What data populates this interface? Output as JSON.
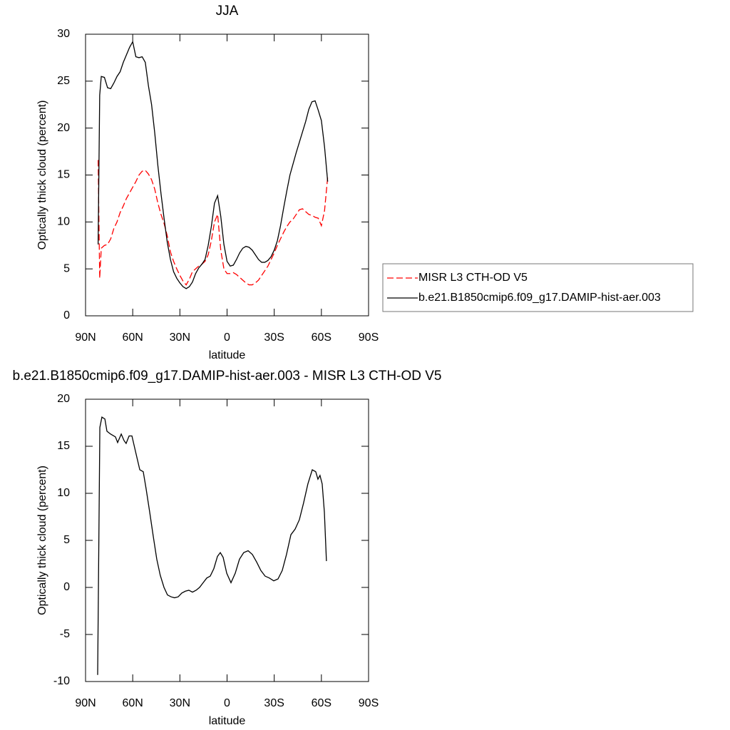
{
  "chart_data": [
    {
      "type": "line",
      "title": "JJA",
      "xlabel": "latitude",
      "ylabel": "Optically thick cloud (percent)",
      "x": [
        82,
        81,
        80,
        78,
        76,
        74,
        72,
        70,
        68,
        66,
        64,
        62,
        60,
        58,
        56,
        54,
        52,
        50,
        48,
        46,
        44,
        42,
        40,
        38,
        36,
        34,
        32,
        30,
        28,
        26,
        24,
        22,
        20,
        18,
        16,
        14,
        12,
        10,
        8,
        6,
        4,
        2,
        0,
        -2,
        -4,
        -6,
        -8,
        -10,
        -12,
        -14,
        -16,
        -18,
        -20,
        -22,
        -24,
        -26,
        -28,
        -30,
        -32,
        -34,
        -36,
        -38,
        -40,
        -42,
        -44,
        -46,
        -48,
        -50,
        -52,
        -54,
        -56,
        -58,
        -60,
        -62,
        -64
      ],
      "xlim": [
        90,
        -90
      ],
      "xticks": [
        {
          "value": 90,
          "label": "90N"
        },
        {
          "value": 60,
          "label": "60N"
        },
        {
          "value": 30,
          "label": "30N"
        },
        0,
        {
          "value": -30,
          "label": "30S"
        },
        {
          "value": -60,
          "label": "60S"
        },
        {
          "value": -90,
          "label": "90S"
        }
      ],
      "ylim": [
        0,
        30
      ],
      "yticks": [
        0,
        5,
        10,
        15,
        20,
        25,
        30
      ],
      "legend": "right",
      "series": [
        {
          "name": "MISR L3 CTH-OD V5",
          "color": "#ff0000",
          "linestyle": "dashed",
          "values": [
            16.6,
            4.0,
            7.2,
            7.5,
            7.6,
            8.2,
            9.3,
            10.0,
            11.0,
            11.7,
            12.5,
            13.1,
            13.7,
            14.3,
            15.0,
            15.4,
            15.5,
            15.1,
            14.5,
            13.5,
            12.0,
            10.8,
            9.8,
            8.5,
            6.8,
            5.8,
            5.0,
            4.3,
            3.7,
            3.3,
            3.9,
            4.7,
            5.0,
            5.3,
            5.5,
            5.8,
            6.5,
            8.0,
            10.0,
            10.8,
            7.0,
            5.0,
            4.5,
            4.5,
            4.6,
            4.4,
            4.1,
            3.8,
            3.5,
            3.3,
            3.3,
            3.5,
            3.8,
            4.3,
            4.8,
            5.3,
            6.0,
            6.7,
            7.5,
            8.2,
            8.9,
            9.5,
            10.0,
            10.3,
            10.8,
            11.3,
            11.4,
            11.1,
            10.8,
            10.7,
            10.5,
            10.4,
            9.6,
            11.2,
            14.8
          ]
        },
        {
          "name": "b.e21.B1850cmip6.f09_g17.DAMIP-hist-aer.003",
          "color": "#000000",
          "linestyle": "solid",
          "values": [
            7.6,
            23.5,
            25.5,
            25.4,
            24.3,
            24.2,
            24.8,
            25.5,
            26.0,
            27.0,
            27.8,
            28.6,
            29.2,
            27.6,
            27.5,
            27.6,
            27.0,
            24.5,
            22.5,
            19.5,
            16.0,
            13.0,
            10.3,
            7.8,
            6.0,
            4.7,
            4.0,
            3.5,
            3.1,
            2.9,
            3.1,
            3.6,
            4.5,
            5.1,
            5.5,
            6.0,
            7.5,
            9.5,
            12.0,
            12.8,
            10.6,
            7.6,
            5.8,
            5.3,
            5.4,
            6.0,
            6.7,
            7.2,
            7.4,
            7.3,
            7.0,
            6.5,
            6.0,
            5.7,
            5.7,
            5.9,
            6.3,
            7.0,
            8.0,
            9.6,
            11.5,
            13.3,
            15.0,
            16.2,
            17.4,
            18.5,
            19.6,
            20.7,
            22.0,
            22.8,
            22.9,
            21.9,
            20.8,
            18.0,
            14.3
          ]
        }
      ]
    },
    {
      "type": "line",
      "title": "b.e21.B1850cmip6.f09_g17.DAMIP-hist-aer.003 - MISR L3 CTH-OD V5",
      "xlabel": "latitude",
      "ylabel": "Optically thick cloud (percent)",
      "x": [
        82.3,
        80.9,
        79.6,
        77.7,
        76.4,
        74.1,
        71.0,
        69.6,
        67.3,
        65.5,
        64.2,
        62.3,
        60.5,
        58.3,
        55.5,
        53.3,
        51.5,
        49.2,
        47.0,
        44.7,
        42.5,
        40.1,
        37.9,
        35.6,
        33.4,
        31.1,
        28.8,
        26.5,
        24.3,
        22.0,
        19.7,
        17.5,
        15.2,
        12.9,
        10.7,
        8.4,
        6.1,
        4.3,
        2.5,
        0.2,
        -2.5,
        -5.2,
        -7.9,
        -10.6,
        -13.4,
        -16.1,
        -18.8,
        -21.5,
        -24.2,
        -26.9,
        -29.7,
        -32.4,
        -35.1,
        -37.8,
        -40.6,
        -43.3,
        -46.0,
        -48.7,
        -51.4,
        -54.2,
        -56.4,
        -57.8,
        -59.1,
        -60.5,
        -61.9,
        -63.2
      ],
      "xlim": [
        90,
        -90
      ],
      "xticks": [
        {
          "value": 90,
          "label": "90N"
        },
        {
          "value": 60,
          "label": "60N"
        },
        {
          "value": 30,
          "label": "30N"
        },
        0,
        {
          "value": -30,
          "label": "30S"
        },
        {
          "value": -60,
          "label": "60S"
        },
        {
          "value": -90,
          "label": "90S"
        }
      ],
      "ylim": [
        -10,
        20
      ],
      "yticks": [
        -10,
        -5,
        0,
        5,
        10,
        15,
        20
      ],
      "series": [
        {
          "color": "#000000",
          "linestyle": "solid",
          "values": [
            -9.3,
            17.0,
            18.1,
            17.9,
            16.6,
            16.3,
            16.0,
            15.4,
            16.3,
            15.6,
            15.3,
            16.1,
            16.1,
            14.5,
            12.5,
            12.3,
            10.5,
            8.0,
            5.5,
            3.0,
            1.3,
            0.0,
            -0.8,
            -1.0,
            -1.1,
            -1.0,
            -0.6,
            -0.4,
            -0.3,
            -0.5,
            -0.3,
            0.0,
            0.5,
            1.0,
            1.2,
            2.0,
            3.3,
            3.7,
            3.2,
            1.5,
            0.5,
            1.5,
            3.0,
            3.7,
            3.9,
            3.5,
            2.7,
            1.8,
            1.2,
            1.0,
            0.7,
            0.9,
            1.8,
            3.5,
            5.6,
            6.2,
            7.2,
            9.0,
            11.0,
            12.5,
            12.3,
            11.5,
            11.9,
            11.0,
            8.0,
            2.8
          ]
        }
      ]
    }
  ]
}
